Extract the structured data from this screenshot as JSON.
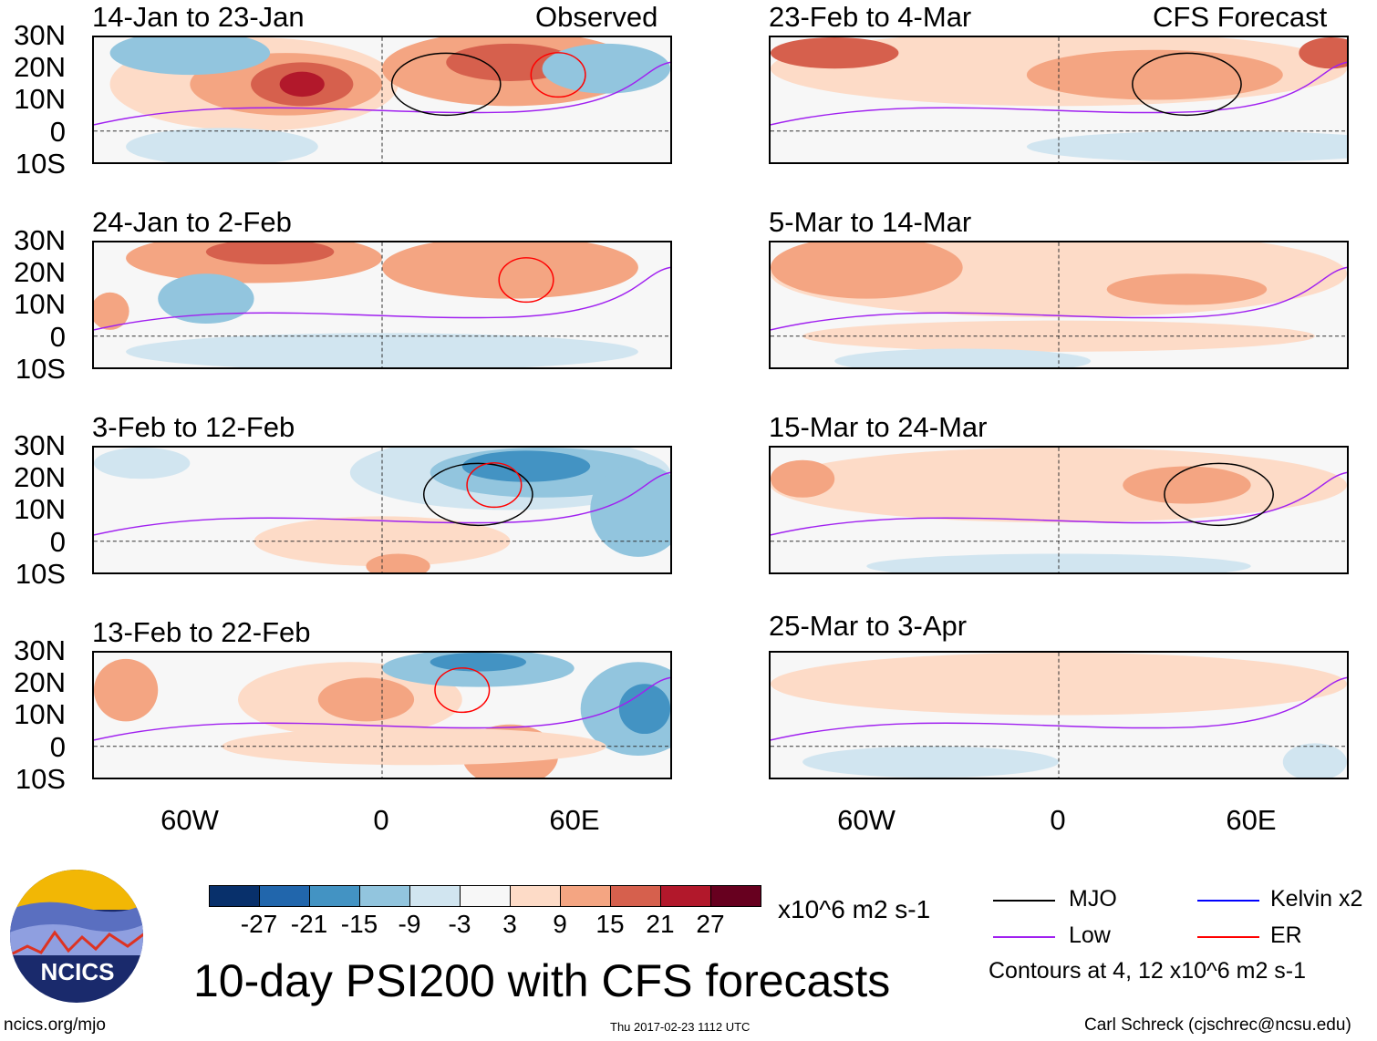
{
  "title": "10-day PSI200 with CFS forecasts",
  "observed_label": "Observed",
  "forecast_label": "CFS Forecast",
  "panels": [
    {
      "label": "14-Jan to 23-Jan",
      "column": "observed"
    },
    {
      "label": "24-Jan to 2-Feb",
      "column": "observed"
    },
    {
      "label": "3-Feb to 12-Feb",
      "column": "observed"
    },
    {
      "label": "13-Feb to 22-Feb",
      "column": "observed"
    },
    {
      "label": "23-Feb to 4-Mar",
      "column": "forecast"
    },
    {
      "label": "5-Mar to 14-Mar",
      "column": "forecast"
    },
    {
      "label": "15-Mar to 24-Mar",
      "column": "forecast"
    },
    {
      "label": "25-Mar to 3-Apr",
      "column": "forecast"
    }
  ],
  "lat_labels": [
    "30N",
    "20N",
    "10N",
    "0",
    "10S"
  ],
  "lon_labels": [
    "60W",
    "0",
    "60E"
  ],
  "colorbar": {
    "colors": [
      "#08306b",
      "#2166ac",
      "#4393c3",
      "#92c5de",
      "#d1e5f0",
      "#f7f7f7",
      "#fddbc7",
      "#f4a582",
      "#d6604d",
      "#b2182b",
      "#67001f"
    ],
    "levels": [
      "-27",
      "-21",
      "-15",
      "-9",
      "-3",
      "3",
      "9",
      "15",
      "21",
      "27"
    ],
    "units": "x10^6 m2 s-1"
  },
  "legend": [
    {
      "label": "MJO",
      "color": "#000000"
    },
    {
      "label": "Kelvin x2",
      "color": "#0000ff"
    },
    {
      "label": "Low",
      "color": "#a020f0"
    },
    {
      "label": "ER",
      "color": "#ff0000"
    }
  ],
  "contours_note": "Contours at 4, 12 x10^6 m2 s-1",
  "logo_text": "NCICS",
  "footer": {
    "url": "ncics.org/mjo",
    "timestamp": "Thu 2017-02-23 1112 UTC",
    "author": "Carl Schreck (cjschrec@ncsu.edu)"
  }
}
